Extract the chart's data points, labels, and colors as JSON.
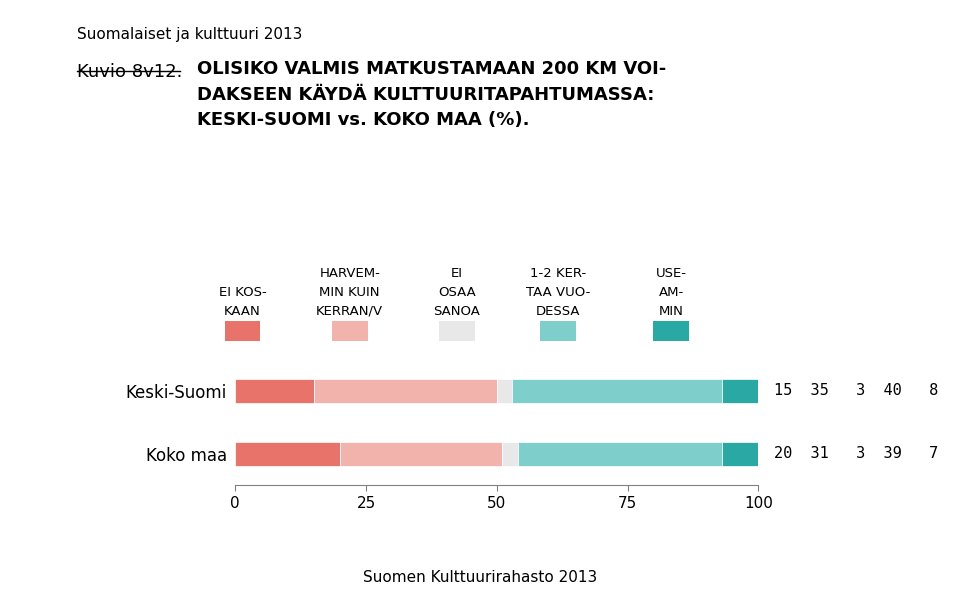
{
  "supertitle": "Suomalaiset ja kulttuuri 2013",
  "kuvio_label": "Kuvio 8v12.",
  "title_line1": "OLISIKO VALMIS MATKUSTAMAAN 200 KM VOI-",
  "title_line2": "DAKSEEN KÄYDÄ KULTTUURITAPAHTUMASSA:",
  "title_line3": "KESKI-SUOMI vs. KOKO MAA (%).",
  "footer": "Suomen Kulttuurirahasto 2013",
  "categories": [
    "EI KOS-\nKAAN",
    "HARVEM-\nMIN KUIN\nKERRAN/V",
    "EI\nOSAA\nSANOA",
    "1-2 KER-\nTAA VUO-\nDESSA",
    "USE-\nAM-\nMIN"
  ],
  "colors": [
    "#E8736A",
    "#F2B3AD",
    "#E8E8E8",
    "#7ECFCC",
    "#2AA8A3"
  ],
  "rows": [
    {
      "label": "Keski-Suomi",
      "values": [
        15,
        35,
        3,
        40,
        8
      ]
    },
    {
      "label": "Koko maa",
      "values": [
        20,
        31,
        3,
        39,
        7
      ]
    }
  ],
  "xlim": [
    0,
    100
  ],
  "xticks": [
    0,
    25,
    50,
    75,
    100
  ],
  "background_color": "#FFFFFF"
}
